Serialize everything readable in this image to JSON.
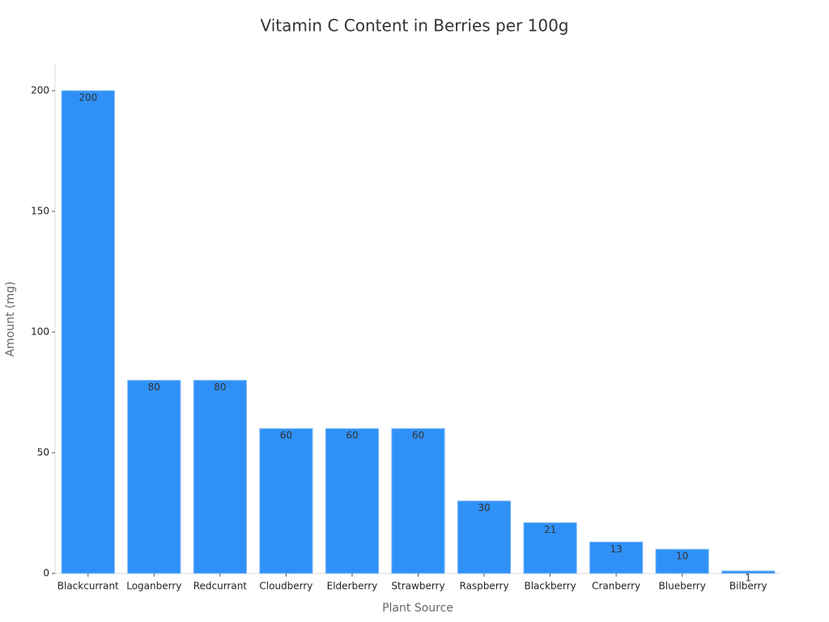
{
  "chart_data": {
    "type": "bar",
    "title": "Vitamin C Content in Berries per 100g",
    "x_label": "Plant Source",
    "y_label": "Amount (mg)",
    "categories": [
      "Blackcurrant",
      "Loganberry",
      "Redcurrant",
      "Cloudberry",
      "Elderberry",
      "Strawberry",
      "Raspberry",
      "Blackberry",
      "Cranberry",
      "Blueberry",
      "Bilberry"
    ],
    "values": [
      200,
      80,
      80,
      60,
      60,
      60,
      30,
      21,
      13,
      10,
      1
    ],
    "color": "#2f91f7",
    "ylim": [
      0,
      210
    ],
    "yticks": [
      0,
      50,
      100,
      150,
      200
    ],
    "grid": false
  }
}
